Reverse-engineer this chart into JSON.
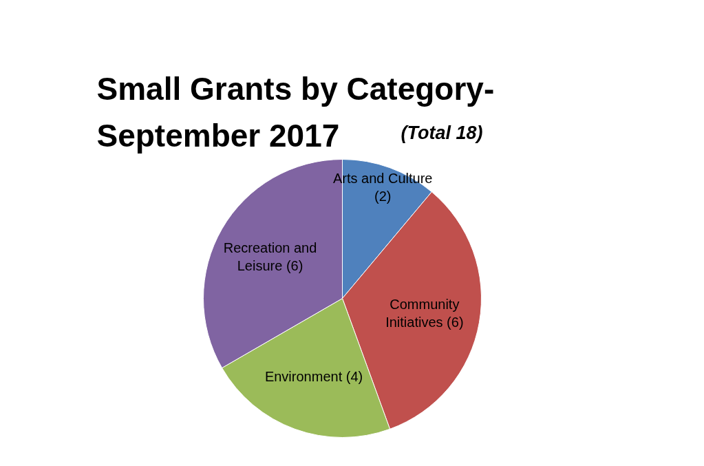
{
  "chart_data": {
    "type": "pie",
    "title": "Small Grants by Category- September 2017",
    "subtitle": "(Total 18)",
    "categories": [
      "Arts and Culture",
      "Community Initiatives",
      "Environment",
      "Recreation and Leisure"
    ],
    "values": [
      2,
      6,
      4,
      6
    ],
    "colors": [
      "#4f81bd",
      "#c0504d",
      "#9bbb59",
      "#8064a2"
    ],
    "value_labels": [
      "(2)",
      "(6)",
      "(4)",
      "(6)"
    ]
  }
}
